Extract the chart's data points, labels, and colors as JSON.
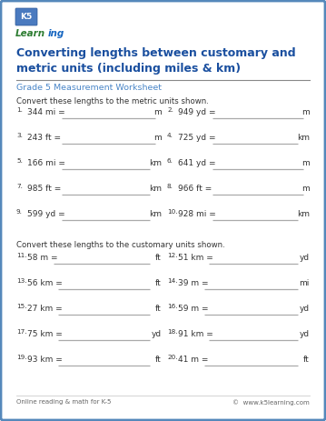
{
  "title": "Converting lengths between customary and\nmetric units (including miles & km)",
  "subtitle": "Grade 5 Measurement Worksheet",
  "section1_header": "Convert these lengths to the metric units shown.",
  "section2_header": "Convert these lengths to the customary units shown.",
  "footer_left": "Online reading & math for K-5",
  "footer_right": "©  www.k5learning.com",
  "title_color": "#1a4f9f",
  "subtitle_color": "#4a86c8",
  "border_color": "#5588bb",
  "line_color": "#aaaaaa",
  "text_color": "#333333",
  "bg_color": "#ffffff",
  "section1_problems": [
    {
      "num": "1.",
      "expr": "344 mi =",
      "unit": "m",
      "col": 0
    },
    {
      "num": "2.",
      "expr": "949 yd =",
      "unit": "m",
      "col": 1
    },
    {
      "num": "3.",
      "expr": "243 ft =",
      "unit": "m",
      "col": 0
    },
    {
      "num": "4.",
      "expr": "725 yd =",
      "unit": "km",
      "col": 1
    },
    {
      "num": "5.",
      "expr": "166 mi =",
      "unit": "km",
      "col": 0
    },
    {
      "num": "6.",
      "expr": "641 yd =",
      "unit": "m",
      "col": 1
    },
    {
      "num": "7.",
      "expr": "985 ft =",
      "unit": "km",
      "col": 0
    },
    {
      "num": "8.",
      "expr": "966 ft =",
      "unit": "m",
      "col": 1
    },
    {
      "num": "9.",
      "expr": "599 yd =",
      "unit": "km",
      "col": 0
    },
    {
      "num": "10.",
      "expr": "928 mi =",
      "unit": "km",
      "col": 1
    }
  ],
  "section2_problems": [
    {
      "num": "11.",
      "expr": "58 m =",
      "unit": "ft",
      "col": 0
    },
    {
      "num": "12.",
      "expr": "51 km =",
      "unit": "yd",
      "col": 1
    },
    {
      "num": "13.",
      "expr": "56 km =",
      "unit": "ft",
      "col": 0
    },
    {
      "num": "14.",
      "expr": "39 m =",
      "unit": "mi",
      "col": 1
    },
    {
      "num": "15.",
      "expr": "27 km =",
      "unit": "ft",
      "col": 0
    },
    {
      "num": "16.",
      "expr": "59 m =",
      "unit": "yd",
      "col": 1
    },
    {
      "num": "17.",
      "expr": "75 km =",
      "unit": "yd",
      "col": 0
    },
    {
      "num": "18.",
      "expr": "91 km =",
      "unit": "yd",
      "col": 1
    },
    {
      "num": "19.",
      "expr": "93 km =",
      "unit": "ft",
      "col": 0
    },
    {
      "num": "20.",
      "expr": "41 m =",
      "unit": "ft",
      "col": 1
    }
  ]
}
